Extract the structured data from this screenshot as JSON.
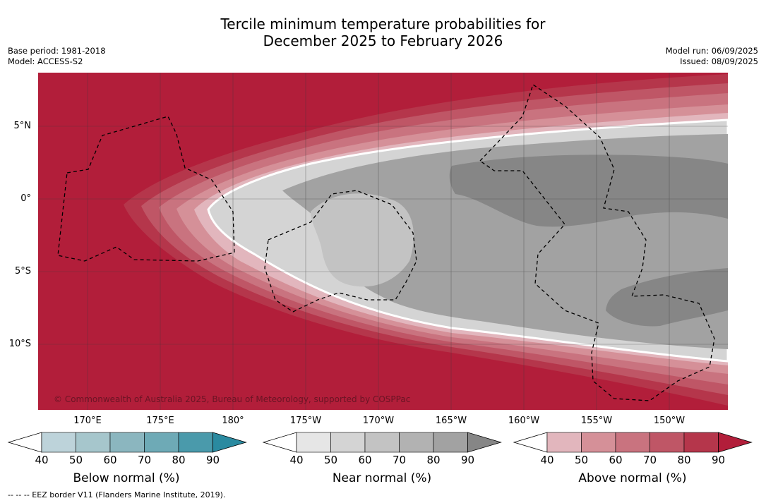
{
  "header": {
    "title_line1": "Tercile minimum temperature probabilities for",
    "title_line2": "December 2025 to February 2026",
    "base_period": "Base period: 1981-2018",
    "model": "Model: ACCESS-S2",
    "model_run": "Model run: 06/09/2025",
    "issued": "Issued: 08/09/2025"
  },
  "map": {
    "latitude_labels": [
      "5°N",
      "0°",
      "5°S",
      "10°S"
    ],
    "longitude_labels": [
      "170°E",
      "175°E",
      "180°",
      "175°W",
      "170°W",
      "165°W",
      "160°W",
      "155°W",
      "150°W"
    ],
    "copyright": "© Commonwealth of Australia 2025, Bureau of Meteorology, supported by COSPPac",
    "eez_note": "--  --  -- EEZ border V11 (Flanders Marine Institute, 2019)."
  },
  "colorbars": [
    {
      "label": "Below normal (%)",
      "ticks": [
        "40",
        "50",
        "60",
        "70",
        "80",
        "90"
      ],
      "colors": [
        "#ffffff",
        "#bdd3da",
        "#a6c6cc",
        "#8bb6bf",
        "#6eaab6",
        "#4a9aab",
        "#2a8aa0"
      ]
    },
    {
      "label": "Near normal (%)",
      "ticks": [
        "40",
        "50",
        "60",
        "70",
        "80",
        "90"
      ],
      "colors": [
        "#ffffff",
        "#e6e6e6",
        "#d4d4d4",
        "#c3c3c3",
        "#b2b2b2",
        "#a2a2a2",
        "#868686"
      ]
    },
    {
      "label": "Above normal (%)",
      "ticks": [
        "40",
        "50",
        "60",
        "70",
        "80",
        "90"
      ],
      "colors": [
        "#ffffff",
        "#e2b6bd",
        "#d59098",
        "#c9737f",
        "#bf5666",
        "#b5364b",
        "#b21e3a"
      ]
    }
  ],
  "colors": {
    "above_strong": "#b21e3a",
    "near_strong": "#868686",
    "near_mid": "#a2a2a2"
  }
}
